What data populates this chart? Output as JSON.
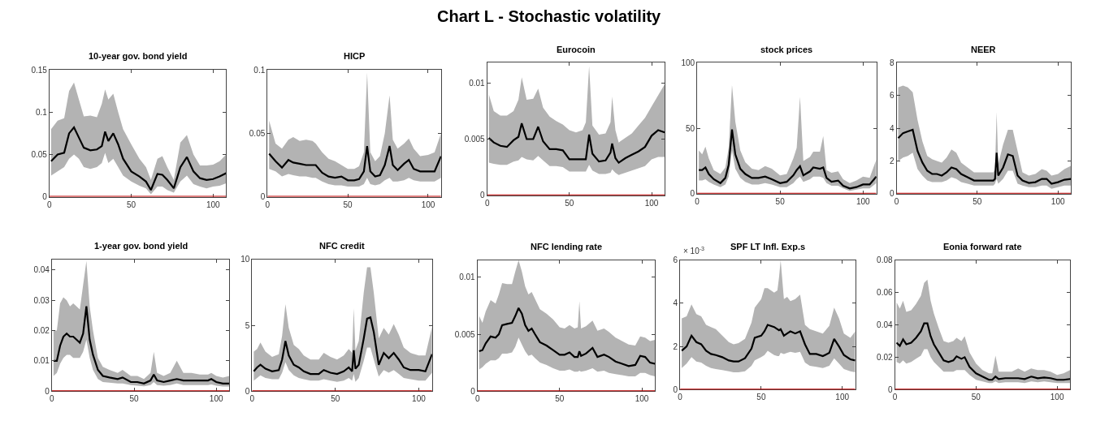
{
  "chart_data": [
    {
      "type": "other",
      "title": "Chart L - Stochastic volatility"
    },
    {
      "type": "line",
      "title": "10-year gov. bond yield",
      "x": [
        1,
        5,
        9,
        12,
        15,
        18,
        21,
        25,
        29,
        32,
        34,
        36,
        39,
        42,
        45,
        50,
        55,
        59,
        62,
        66,
        69,
        72,
        76,
        80,
        84,
        88,
        92,
        96,
        100,
        104,
        108
      ],
      "series": [
        {
          "color": "#000000",
          "values": [
            0.042,
            0.05,
            0.052,
            0.075,
            0.082,
            0.07,
            0.058,
            0.055,
            0.056,
            0.06,
            0.077,
            0.066,
            0.075,
            0.062,
            0.045,
            0.03,
            0.024,
            0.018,
            0.008,
            0.027,
            0.026,
            0.02,
            0.01,
            0.035,
            0.047,
            0.03,
            0.022,
            0.02,
            0.021,
            0.024,
            0.028
          ],
          "upper": [
            0.08,
            0.09,
            0.093,
            0.125,
            0.135,
            0.115,
            0.095,
            0.096,
            0.094,
            0.11,
            0.127,
            0.115,
            0.122,
            0.1,
            0.08,
            0.062,
            0.045,
            0.035,
            0.02,
            0.045,
            0.048,
            0.035,
            0.02,
            0.064,
            0.073,
            0.05,
            0.037,
            0.037,
            0.038,
            0.042,
            0.05
          ],
          "lower": [
            0.025,
            0.03,
            0.035,
            0.045,
            0.05,
            0.045,
            0.035,
            0.033,
            0.035,
            0.04,
            0.052,
            0.04,
            0.045,
            0.035,
            0.025,
            0.018,
            0.013,
            0.01,
            0.003,
            0.012,
            0.012,
            0.008,
            0.005,
            0.018,
            0.025,
            0.015,
            0.012,
            0.01,
            0.012,
            0.013,
            0.016
          ]
        }
      ],
      "xlim": [
        0,
        108
      ],
      "xticks": [
        0,
        50,
        100
      ],
      "ylim": [
        0,
        0.15
      ],
      "yticks": [
        0,
        0.05,
        0.1,
        0.15
      ],
      "ref_lines": [
        {
          "axis": "y",
          "value": 0,
          "color": "#c00000"
        }
      ]
    },
    {
      "type": "line",
      "title": "HICP",
      "x": [
        1,
        5,
        9,
        13,
        16,
        20,
        24,
        28,
        30,
        34,
        38,
        42,
        46,
        50,
        54,
        57,
        60,
        62,
        64,
        67,
        70,
        73,
        76,
        78,
        81,
        85,
        88,
        91,
        95,
        100,
        104,
        108
      ],
      "series": [
        {
          "color": "#000000",
          "values": [
            0.034,
            0.028,
            0.023,
            0.029,
            0.027,
            0.026,
            0.025,
            0.025,
            0.025,
            0.019,
            0.016,
            0.015,
            0.016,
            0.013,
            0.013,
            0.014,
            0.02,
            0.04,
            0.02,
            0.016,
            0.017,
            0.025,
            0.04,
            0.025,
            0.021,
            0.026,
            0.029,
            0.022,
            0.02,
            0.02,
            0.02,
            0.032
          ],
          "upper": [
            0.06,
            0.042,
            0.038,
            0.045,
            0.047,
            0.044,
            0.045,
            0.044,
            0.042,
            0.035,
            0.03,
            0.028,
            0.025,
            0.022,
            0.022,
            0.024,
            0.035,
            0.098,
            0.035,
            0.028,
            0.032,
            0.05,
            0.08,
            0.045,
            0.038,
            0.042,
            0.046,
            0.038,
            0.032,
            0.033,
            0.035,
            0.05
          ],
          "lower": [
            0.022,
            0.02,
            0.016,
            0.018,
            0.017,
            0.016,
            0.016,
            0.015,
            0.015,
            0.012,
            0.01,
            0.009,
            0.009,
            0.008,
            0.008,
            0.008,
            0.01,
            0.015,
            0.01,
            0.009,
            0.01,
            0.013,
            0.015,
            0.012,
            0.012,
            0.013,
            0.015,
            0.013,
            0.012,
            0.012,
            0.012,
            0.015
          ]
        }
      ],
      "xlim": [
        0,
        108
      ],
      "xticks": [
        0,
        50,
        100
      ],
      "ylim": [
        0,
        0.1
      ],
      "yticks": [
        0,
        0.05,
        0.1
      ],
      "ref_lines": [
        {
          "axis": "y",
          "value": 0,
          "color": "#c00000"
        }
      ]
    },
    {
      "type": "line",
      "title": "Eurocoin",
      "x": [
        1,
        4,
        8,
        12,
        16,
        19,
        21,
        24,
        28,
        31,
        34,
        38,
        42,
        46,
        50,
        54,
        58,
        60,
        62,
        64,
        68,
        72,
        75,
        76,
        78,
        80,
        84,
        88,
        92,
        96,
        100,
        104,
        108
      ],
      "series": [
        {
          "color": "#000000",
          "values": [
            0.0051,
            0.0047,
            0.0044,
            0.0043,
            0.0049,
            0.0052,
            0.0064,
            0.005,
            0.005,
            0.0061,
            0.0048,
            0.0041,
            0.0041,
            0.004,
            0.0032,
            0.0032,
            0.0032,
            0.0032,
            0.0054,
            0.0037,
            0.003,
            0.0031,
            0.0038,
            0.0046,
            0.0033,
            0.0029,
            0.0033,
            0.0036,
            0.0039,
            0.0043,
            0.0053,
            0.0058,
            0.0056
          ],
          "upper": [
            0.009,
            0.0075,
            0.0071,
            0.0071,
            0.0075,
            0.0085,
            0.0105,
            0.0085,
            0.0086,
            0.0095,
            0.0078,
            0.007,
            0.0066,
            0.0063,
            0.0058,
            0.0056,
            0.0058,
            0.0065,
            0.0115,
            0.0062,
            0.0054,
            0.0055,
            0.0065,
            0.0088,
            0.0058,
            0.0047,
            0.0051,
            0.0055,
            0.0062,
            0.0069,
            0.0079,
            0.0089,
            0.0099
          ],
          "lower": [
            0.0029,
            0.0028,
            0.0027,
            0.0027,
            0.003,
            0.0031,
            0.0034,
            0.0032,
            0.0031,
            0.0035,
            0.0031,
            0.0026,
            0.0026,
            0.0025,
            0.0021,
            0.0021,
            0.0021,
            0.0021,
            0.0027,
            0.0022,
            0.0019,
            0.0019,
            0.002,
            0.0023,
            0.002,
            0.0018,
            0.002,
            0.0022,
            0.0024,
            0.0026,
            0.0032,
            0.0034,
            0.0034
          ]
        }
      ],
      "xlim": [
        0,
        108
      ],
      "xticks": [
        0,
        50,
        100
      ],
      "ylim": [
        0,
        0.0118
      ],
      "yticks": [
        0,
        0.005,
        0.01
      ],
      "ref_lines": [
        {
          "axis": "y",
          "value": 0,
          "color": "#c00000"
        }
      ]
    },
    {
      "type": "line",
      "title": "stock prices",
      "x": [
        1,
        3,
        5,
        7,
        10,
        14,
        17,
        19,
        21,
        23,
        26,
        29,
        33,
        37,
        41,
        45,
        50,
        54,
        58,
        60,
        62,
        64,
        68,
        70,
        74,
        76,
        78,
        81,
        85,
        88,
        92,
        96,
        100,
        104,
        108
      ],
      "series": [
        {
          "color": "#000000",
          "values": [
            18,
            18,
            20,
            15,
            11,
            8,
            12,
            22,
            49,
            30,
            19,
            15,
            12,
            12,
            13,
            11,
            8,
            9,
            14,
            18,
            21,
            14,
            17,
            20,
            19,
            20,
            12,
            9,
            10,
            6,
            4,
            5,
            7,
            7,
            13
          ],
          "upper": [
            33,
            30,
            36,
            27,
            18,
            15,
            20,
            35,
            83,
            55,
            33,
            24,
            19,
            18,
            21,
            19,
            14,
            15,
            27,
            35,
            74,
            25,
            28,
            32,
            32,
            44,
            18,
            16,
            17,
            11,
            8,
            10,
            13,
            12,
            26
          ],
          "lower": [
            10,
            10,
            11,
            9,
            7,
            5,
            7,
            13,
            33,
            19,
            12,
            9,
            7,
            7,
            8,
            7,
            5,
            5,
            8,
            11,
            13,
            9,
            11,
            13,
            13,
            12,
            8,
            6,
            6,
            4,
            2,
            3,
            4,
            4,
            8
          ]
        }
      ],
      "xlim": [
        0,
        108
      ],
      "xticks": [
        0,
        50,
        100
      ],
      "ylim": [
        0,
        100
      ],
      "yticks": [
        0,
        50,
        100
      ],
      "ref_lines": [
        {
          "axis": "y",
          "value": 0,
          "color": "#c00000"
        }
      ]
    },
    {
      "type": "line",
      "title": "NEER",
      "x": [
        1,
        4,
        7,
        10,
        13,
        16,
        19,
        22,
        25,
        28,
        31,
        34,
        37,
        40,
        44,
        48,
        52,
        56,
        60,
        61,
        62,
        63,
        66,
        69,
        72,
        75,
        78,
        82,
        86,
        90,
        93,
        96,
        100,
        104,
        108
      ],
      "series": [
        {
          "color": "#000000",
          "values": [
            3.4,
            3.7,
            3.8,
            3.9,
            2.6,
            1.9,
            1.4,
            1.2,
            1.2,
            1.1,
            1.3,
            1.6,
            1.5,
            1.2,
            1.0,
            0.8,
            0.8,
            0.8,
            0.8,
            0.9,
            2.5,
            1.1,
            1.6,
            2.4,
            2.3,
            1.1,
            0.8,
            0.65,
            0.7,
            0.9,
            0.9,
            0.6,
            0.7,
            0.85,
            0.9
          ],
          "upper": [
            6.5,
            6.6,
            6.5,
            6.2,
            4.5,
            3.2,
            2.3,
            2.1,
            2.0,
            1.9,
            2.2,
            2.7,
            2.5,
            1.9,
            1.6,
            1.3,
            1.3,
            1.3,
            1.3,
            1.5,
            5.0,
            1.8,
            3.0,
            3.9,
            3.9,
            2.6,
            1.3,
            1.1,
            1.2,
            1.5,
            1.4,
            1.1,
            1.2,
            1.5,
            1.7
          ],
          "lower": [
            2.0,
            2.2,
            2.3,
            2.5,
            1.5,
            1.1,
            0.8,
            0.7,
            0.7,
            0.7,
            0.8,
            1.0,
            0.9,
            0.7,
            0.6,
            0.5,
            0.5,
            0.5,
            0.5,
            0.6,
            0.9,
            0.6,
            0.9,
            1.4,
            1.4,
            0.6,
            0.5,
            0.4,
            0.4,
            0.5,
            0.5,
            0.3,
            0.4,
            0.5,
            0.5
          ]
        }
      ],
      "xlim": [
        0,
        108
      ],
      "xticks": [
        0,
        50,
        100
      ],
      "ylim": [
        0,
        8
      ],
      "yticks": [
        0,
        2,
        4,
        6,
        8
      ],
      "ref_lines": [
        {
          "axis": "y",
          "value": 0,
          "color": "#c00000"
        }
      ]
    },
    {
      "type": "line",
      "title": "1-year gov. bond yield",
      "x": [
        1,
        3,
        5,
        7,
        9,
        11,
        13,
        15,
        17,
        19,
        21,
        23,
        25,
        28,
        31,
        35,
        40,
        43,
        48,
        52,
        56,
        60,
        62,
        64,
        68,
        72,
        76,
        80,
        85,
        90,
        95,
        97,
        100,
        104,
        108
      ],
      "series": [
        {
          "color": "#000000",
          "values": [
            0.01,
            0.01,
            0.015,
            0.018,
            0.019,
            0.018,
            0.018,
            0.017,
            0.016,
            0.019,
            0.028,
            0.017,
            0.012,
            0.007,
            0.005,
            0.0045,
            0.004,
            0.0045,
            0.003,
            0.003,
            0.0025,
            0.0035,
            0.0055,
            0.0035,
            0.003,
            0.0035,
            0.004,
            0.0035,
            0.0035,
            0.0035,
            0.0035,
            0.004,
            0.003,
            0.0025,
            0.0025
          ],
          "upper": [
            0.02,
            0.02,
            0.029,
            0.031,
            0.03,
            0.028,
            0.029,
            0.028,
            0.027,
            0.035,
            0.043,
            0.028,
            0.02,
            0.011,
            0.008,
            0.007,
            0.006,
            0.007,
            0.005,
            0.005,
            0.004,
            0.006,
            0.013,
            0.006,
            0.005,
            0.006,
            0.01,
            0.006,
            0.006,
            0.0055,
            0.0055,
            0.006,
            0.005,
            0.0045,
            0.005
          ],
          "lower": [
            0.005,
            0.006,
            0.009,
            0.011,
            0.012,
            0.012,
            0.011,
            0.011,
            0.011,
            0.013,
            0.017,
            0.011,
            0.007,
            0.004,
            0.003,
            0.0028,
            0.0025,
            0.0025,
            0.002,
            0.0018,
            0.0016,
            0.002,
            0.003,
            0.002,
            0.0018,
            0.002,
            0.0025,
            0.002,
            0.002,
            0.002,
            0.002,
            0.0022,
            0.0018,
            0.0015,
            0.0015
          ]
        }
      ],
      "xlim": [
        0,
        108
      ],
      "xticks": [
        0,
        50,
        100
      ],
      "ylim": [
        0,
        0.0435
      ],
      "yticks": [
        0,
        0.01,
        0.02,
        0.03,
        0.04
      ],
      "ref_lines": [
        {
          "axis": "y",
          "value": 0,
          "color": "#c00000"
        }
      ]
    },
    {
      "type": "line",
      "title": "NFC credit",
      "x": [
        1,
        3,
        5,
        8,
        12,
        16,
        18,
        20,
        22,
        25,
        28,
        31,
        35,
        40,
        43,
        47,
        51,
        55,
        58,
        60,
        61,
        62,
        64,
        67,
        69,
        71,
        73,
        76,
        79,
        82,
        85,
        88,
        91,
        95,
        100,
        104,
        108
      ],
      "series": [
        {
          "color": "#000000",
          "values": [
            1.5,
            1.8,
            2.0,
            1.7,
            1.5,
            1.6,
            2.4,
            3.8,
            2.7,
            2.0,
            1.8,
            1.5,
            1.3,
            1.3,
            1.6,
            1.4,
            1.3,
            1.5,
            1.8,
            1.5,
            3.1,
            1.7,
            2.0,
            4.0,
            5.5,
            5.6,
            4.5,
            2.0,
            2.9,
            2.5,
            2.9,
            2.4,
            1.8,
            1.6,
            1.6,
            1.5,
            2.8
          ],
          "upper": [
            3.0,
            3.2,
            3.7,
            3.0,
            2.6,
            2.8,
            4.2,
            6.6,
            4.8,
            3.5,
            3.2,
            2.7,
            2.4,
            2.4,
            2.9,
            2.6,
            2.4,
            2.7,
            3.2,
            2.9,
            6.3,
            3.1,
            3.8,
            7.5,
            9.4,
            9.4,
            7.5,
            4.0,
            4.8,
            4.3,
            5.1,
            4.3,
            3.3,
            2.9,
            2.7,
            2.7,
            4.9
          ],
          "lower": [
            0.8,
            1.0,
            1.2,
            1.0,
            0.9,
            0.9,
            1.4,
            2.2,
            1.6,
            1.2,
            1.0,
            0.9,
            0.8,
            0.8,
            0.9,
            0.8,
            0.7,
            0.8,
            1.0,
            0.8,
            1.3,
            0.7,
            1.0,
            2.3,
            3.3,
            3.3,
            2.4,
            1.1,
            1.6,
            1.4,
            1.6,
            1.3,
            1.0,
            0.9,
            0.8,
            0.8,
            1.4
          ]
        }
      ],
      "xlim": [
        0,
        108
      ],
      "xticks": [
        0,
        50,
        100
      ],
      "ylim": [
        0,
        10
      ],
      "yticks": [
        0,
        5,
        10
      ],
      "ref_lines": [
        {
          "axis": "y",
          "value": 0,
          "color": "#c00000"
        }
      ]
    },
    {
      "type": "line",
      "title": "NFC lending rate",
      "x": [
        1,
        3,
        5,
        8,
        11,
        13,
        15,
        18,
        21,
        23,
        25,
        27,
        29,
        31,
        33,
        35,
        38,
        42,
        46,
        50,
        53,
        56,
        59,
        61,
        62,
        63,
        66,
        70,
        73,
        77,
        80,
        84,
        88,
        92,
        96,
        99,
        102,
        105,
        108
      ],
      "series": [
        {
          "color": "#000000",
          "values": [
            0.0035,
            0.0036,
            0.0042,
            0.0048,
            0.0047,
            0.005,
            0.0058,
            0.0059,
            0.006,
            0.0066,
            0.0073,
            0.0068,
            0.0058,
            0.0053,
            0.0055,
            0.005,
            0.0043,
            0.004,
            0.0036,
            0.0032,
            0.0032,
            0.0034,
            0.003,
            0.003,
            0.0035,
            0.0031,
            0.0033,
            0.0038,
            0.003,
            0.0032,
            0.003,
            0.0026,
            0.0024,
            0.0022,
            0.0023,
            0.0031,
            0.003,
            0.0025,
            0.0024
          ],
          "upper": [
            0.0066,
            0.006,
            0.007,
            0.008,
            0.0077,
            0.0085,
            0.0095,
            0.0094,
            0.0094,
            0.0105,
            0.0115,
            0.0105,
            0.0092,
            0.0085,
            0.0087,
            0.0081,
            0.0072,
            0.0068,
            0.0063,
            0.0056,
            0.0055,
            0.0058,
            0.0055,
            0.0056,
            0.0079,
            0.0055,
            0.0057,
            0.0062,
            0.0053,
            0.0055,
            0.0052,
            0.0047,
            0.0044,
            0.0041,
            0.004,
            0.0048,
            0.0047,
            0.0044,
            0.0045
          ],
          "lower": [
            0.0019,
            0.0021,
            0.0024,
            0.0027,
            0.0027,
            0.0029,
            0.0033,
            0.0033,
            0.0034,
            0.0039,
            0.0047,
            0.0041,
            0.0035,
            0.0031,
            0.0032,
            0.0029,
            0.0025,
            0.0023,
            0.002,
            0.0018,
            0.0018,
            0.0019,
            0.0017,
            0.0017,
            0.0018,
            0.0017,
            0.0018,
            0.002,
            0.0017,
            0.0018,
            0.0016,
            0.0015,
            0.0014,
            0.0013,
            0.0013,
            0.0016,
            0.0016,
            0.0014,
            0.0013
          ]
        }
      ],
      "xlim": [
        0,
        108
      ],
      "xticks": [
        0,
        50,
        100
      ],
      "ylim": [
        0,
        0.0115
      ],
      "yticks": [
        0,
        0.005,
        0.01
      ],
      "ref_lines": [
        {
          "axis": "y",
          "value": 0,
          "color": "#c00000"
        }
      ]
    },
    {
      "type": "line",
      "title": "SPF LT Infl. Exp.s",
      "annotations": [
        "× 10$^{-3}$"
      ],
      "x": [
        1,
        4,
        7,
        10,
        13,
        16,
        19,
        22,
        26,
        30,
        33,
        36,
        40,
        44,
        46,
        50,
        52,
        54,
        58,
        60,
        61,
        62,
        64,
        66,
        68,
        71,
        74,
        77,
        80,
        84,
        88,
        92,
        95,
        98,
        101,
        105,
        108
      ],
      "series": [
        {
          "color": "#000000",
          "values": [
            1.8,
            2.0,
            2.5,
            2.2,
            2.1,
            1.8,
            1.65,
            1.6,
            1.5,
            1.35,
            1.3,
            1.3,
            1.45,
            1.9,
            2.4,
            2.5,
            2.7,
            3.0,
            2.9,
            2.8,
            2.75,
            2.8,
            2.5,
            2.6,
            2.7,
            2.6,
            2.7,
            2.1,
            1.65,
            1.65,
            1.55,
            1.7,
            2.35,
            2.0,
            1.6,
            1.4,
            1.35
          ],
          "upper": [
            3.3,
            3.4,
            3.95,
            3.5,
            3.4,
            3.0,
            2.9,
            2.8,
            2.5,
            2.2,
            2.1,
            2.15,
            2.35,
            3.1,
            3.8,
            4.2,
            4.7,
            4.7,
            4.5,
            4.6,
            5.2,
            6.0,
            4.2,
            4.3,
            4.1,
            4.2,
            4.4,
            3.0,
            2.8,
            2.7,
            2.6,
            2.95,
            3.8,
            3.3,
            2.6,
            2.4,
            2.7
          ],
          "lower": [
            1.0,
            1.2,
            1.5,
            1.3,
            1.25,
            1.1,
            1.0,
            0.95,
            0.9,
            0.85,
            0.8,
            0.8,
            0.85,
            1.1,
            1.35,
            1.5,
            1.6,
            1.8,
            1.6,
            1.55,
            1.55,
            1.7,
            1.65,
            1.7,
            1.75,
            1.7,
            1.75,
            1.25,
            1.1,
            1.05,
            1.0,
            1.1,
            1.45,
            1.2,
            0.95,
            0.85,
            0.8
          ]
        }
      ],
      "xlim": [
        0,
        108
      ],
      "xticks": [
        0,
        50,
        100
      ],
      "ylim": [
        0,
        6
      ],
      "yticks": [
        0,
        2,
        4,
        6
      ],
      "ref_lines": [
        {
          "axis": "y",
          "value": 0,
          "color": "#c00000"
        }
      ]
    },
    {
      "type": "line",
      "title": "Eonia forward rate",
      "x": [
        1,
        3,
        5,
        7,
        10,
        13,
        16,
        18,
        20,
        22,
        24,
        27,
        30,
        33,
        36,
        38,
        41,
        43,
        46,
        50,
        54,
        58,
        60,
        62,
        64,
        68,
        72,
        76,
        80,
        84,
        88,
        92,
        96,
        100,
        104,
        108
      ],
      "series": [
        {
          "color": "#000000",
          "values": [
            0.029,
            0.027,
            0.031,
            0.028,
            0.029,
            0.032,
            0.036,
            0.041,
            0.041,
            0.033,
            0.028,
            0.023,
            0.018,
            0.017,
            0.018,
            0.0205,
            0.019,
            0.02,
            0.014,
            0.01,
            0.008,
            0.006,
            0.006,
            0.008,
            0.0065,
            0.007,
            0.007,
            0.007,
            0.0065,
            0.008,
            0.007,
            0.0075,
            0.007,
            0.006,
            0.006,
            0.0065
          ],
          "upper": [
            0.054,
            0.05,
            0.055,
            0.048,
            0.049,
            0.053,
            0.058,
            0.066,
            0.068,
            0.055,
            0.047,
            0.038,
            0.03,
            0.029,
            0.03,
            0.032,
            0.03,
            0.033,
            0.023,
            0.016,
            0.012,
            0.01,
            0.01,
            0.021,
            0.011,
            0.011,
            0.011,
            0.013,
            0.011,
            0.013,
            0.012,
            0.012,
            0.011,
            0.009,
            0.01,
            0.012
          ],
          "lower": [
            0.017,
            0.016,
            0.018,
            0.016,
            0.017,
            0.019,
            0.021,
            0.025,
            0.025,
            0.02,
            0.017,
            0.014,
            0.011,
            0.011,
            0.011,
            0.012,
            0.012,
            0.012,
            0.009,
            0.006,
            0.005,
            0.004,
            0.004,
            0.005,
            0.004,
            0.0045,
            0.0045,
            0.0045,
            0.004,
            0.005,
            0.0045,
            0.005,
            0.0045,
            0.004,
            0.004,
            0.004
          ]
        }
      ],
      "xlim": [
        0,
        108
      ],
      "xticks": [
        0,
        50,
        100
      ],
      "ylim": [
        0,
        0.08
      ],
      "yticks": [
        0,
        0.02,
        0.04,
        0.06,
        0.08
      ],
      "ref_lines": [
        {
          "axis": "y",
          "value": 0,
          "color": "#c00000"
        }
      ]
    }
  ]
}
